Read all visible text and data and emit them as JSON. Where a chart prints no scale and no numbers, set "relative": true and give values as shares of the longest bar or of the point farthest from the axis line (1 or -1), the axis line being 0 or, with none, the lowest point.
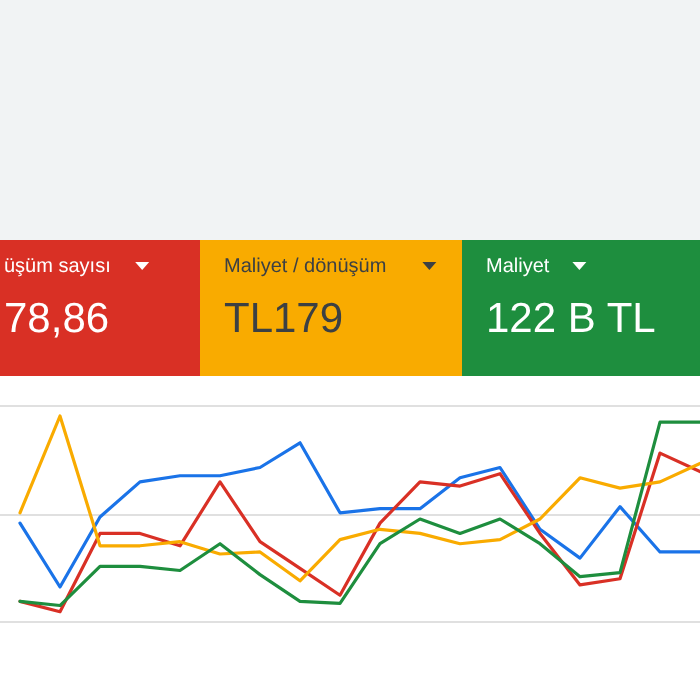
{
  "chart_data": {
    "type": "line",
    "relative": true,
    "ref_lines": [
      {
        "axis": "y",
        "value": 0.52,
        "color": "#e0e0e0"
      }
    ],
    "categories": [
      null,
      null,
      null,
      null,
      null,
      null,
      null,
      null,
      null,
      null,
      null,
      null,
      null,
      null,
      null,
      null,
      null,
      null
    ],
    "annotations": [
      "üşüm sayısı",
      "78,86",
      "Maliyet / dönüşüm",
      "TL179",
      "Maliyet",
      "122 B TL"
    ],
    "series": [
      {
        "color": "#1a73e8",
        "values": [
          0.48,
          0.17,
          0.51,
          0.68,
          0.71,
          0.71,
          0.75,
          0.87,
          0.53,
          0.55,
          0.55,
          0.7,
          0.75,
          0.45,
          0.31,
          0.56,
          0.34,
          0.34
        ]
      },
      {
        "color": "#d93025",
        "values": [
          0.1,
          0.05,
          0.43,
          0.43,
          0.37,
          0.68,
          0.39,
          0.26,
          0.13,
          0.48,
          0.68,
          0.66,
          0.72,
          0.43,
          0.18,
          0.21,
          0.82,
          0.73
        ]
      },
      {
        "color": "#f9ab00",
        "values": [
          0.53,
          1,
          0.37,
          0.37,
          0.39,
          0.33,
          0.34,
          0.2,
          0.4,
          0.45,
          0.43,
          0.38,
          0.4,
          0.5,
          0.7,
          0.65,
          0.68,
          0.77
        ]
      },
      {
        "color": "#1e8e3e",
        "values": [
          0.1,
          0.08,
          0.27,
          0.27,
          0.25,
          0.38,
          0.23,
          0.1,
          0.09,
          0.38,
          0.5,
          0.43,
          0.5,
          0.38,
          0.22,
          0.24,
          0.97,
          0.97
        ]
      }
    ]
  }
}
